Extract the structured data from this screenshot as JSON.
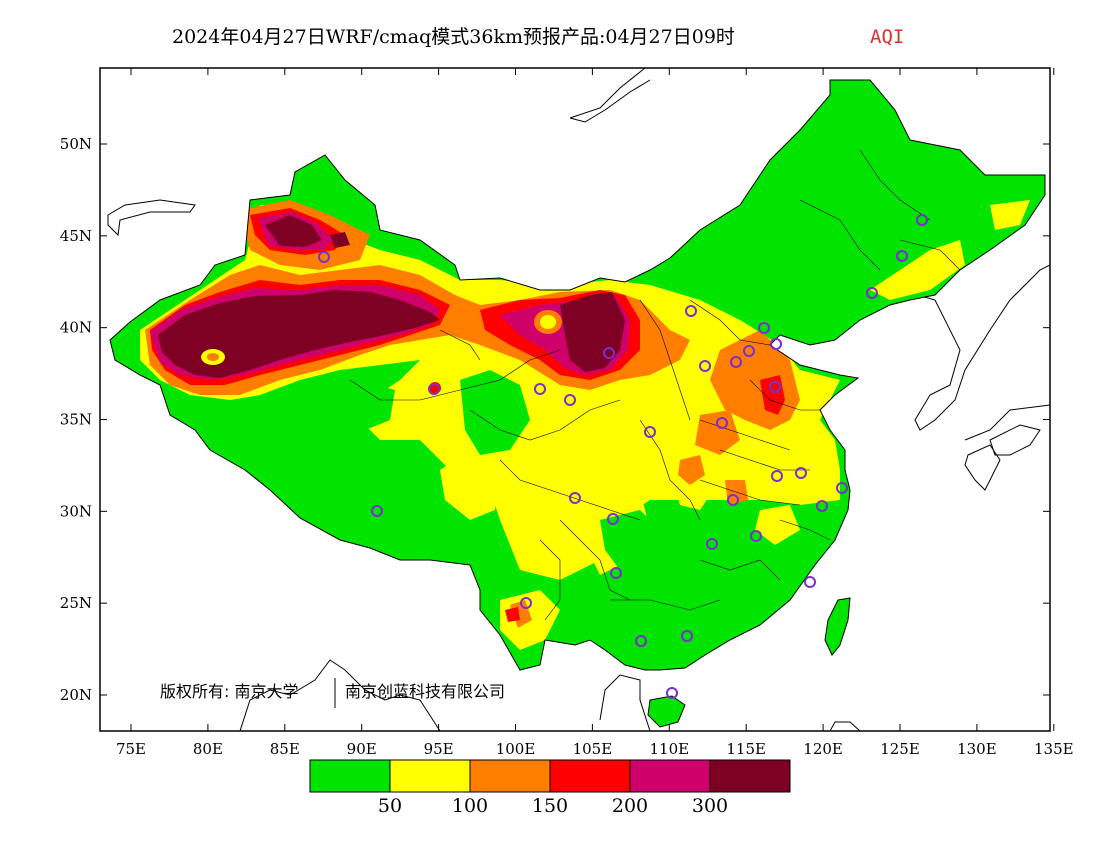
{
  "title": {
    "main": "2024年04月27日WRF/cmaq模式36km预报产品:04月27日09时",
    "variable": "AQI"
  },
  "axes": {
    "lon_ticks": [
      "75E",
      "80E",
      "85E",
      "90E",
      "95E",
      "100E",
      "105E",
      "110E",
      "115E",
      "120E",
      "125E",
      "130E",
      "135E"
    ],
    "lat_ticks": [
      "20N",
      "25N",
      "30N",
      "35N",
      "40N",
      "45N",
      "50N"
    ]
  },
  "colorbar": {
    "colors": [
      "#00e400",
      "#ffff00",
      "#ff7e00",
      "#ff0000",
      "#d0006a",
      "#7e0023"
    ],
    "labels": [
      "50",
      "100",
      "150",
      "200",
      "300"
    ]
  },
  "copyright": {
    "text": "版权所有: 南京大学",
    "text2": "南京创蓝科技有限公司"
  }
}
